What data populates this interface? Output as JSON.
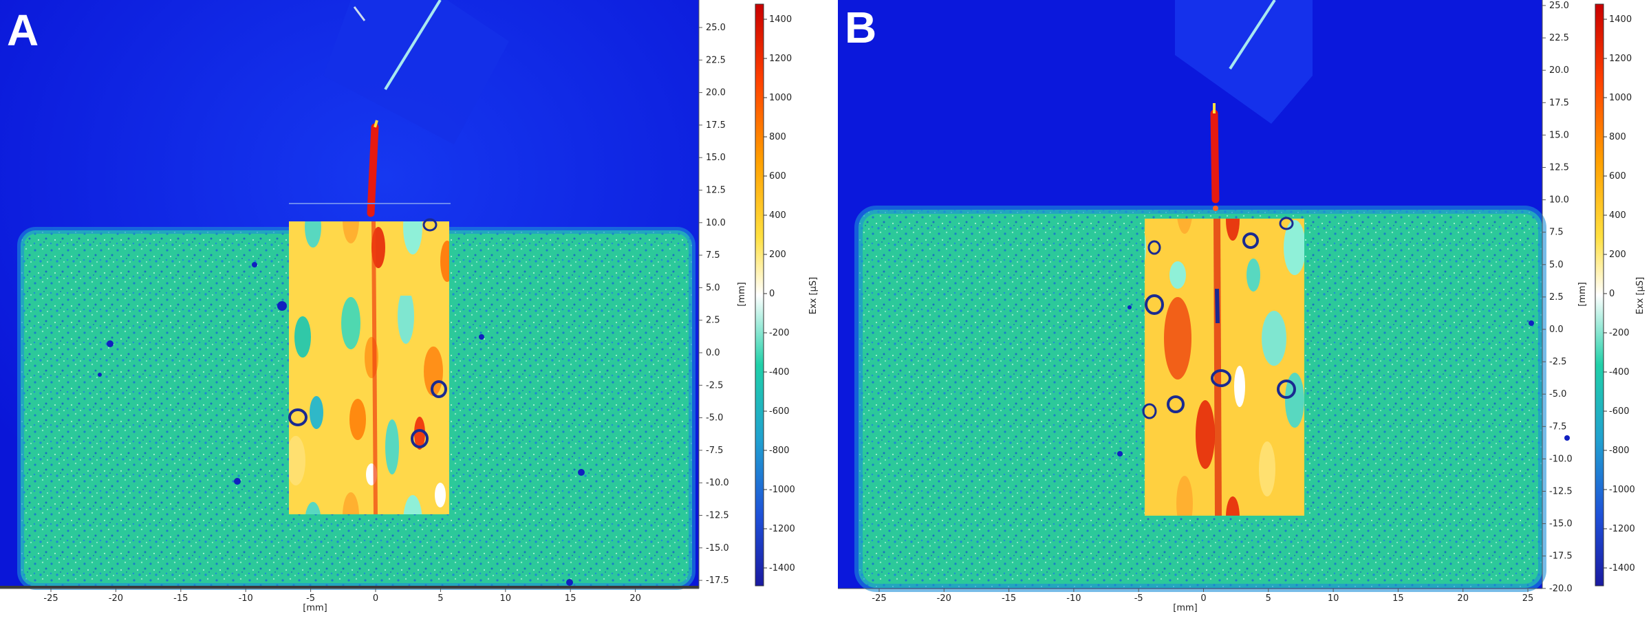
{
  "colors": {
    "background_blue": "#0a1ee6",
    "specimen_green": "#2fcf9c",
    "crack_red": "#e61a10",
    "colormap": [
      "#1a1aa0",
      "#1e50d8",
      "#20a0d0",
      "#20d0a8",
      "#ffffff",
      "#ffe040",
      "#ffa000",
      "#ff4000",
      "#c80000"
    ]
  },
  "colorbar": {
    "label": "Exx [µS]",
    "ticks": [
      "1400",
      "1200",
      "1000",
      "800",
      "600",
      "400",
      "200",
      "0",
      "-200",
      "-400",
      "-600",
      "-800",
      "-1000",
      "-1200",
      "-1400"
    ]
  },
  "panels": [
    {
      "letter": "A",
      "x_axis": {
        "label": "[mm]",
        "ticks": [
          "-25",
          "-20",
          "-15",
          "-10",
          "-5",
          "0",
          "5",
          "10",
          "15",
          "20"
        ]
      },
      "y_axis": {
        "label": "[mm]",
        "ticks": [
          "25.0",
          "22.5",
          "20.0",
          "17.5",
          "15.0",
          "12.5",
          "10.0",
          "7.5",
          "5.0",
          "2.5",
          "0.0",
          "-2.5",
          "-5.0",
          "-7.5",
          "-10.0",
          "-12.5",
          "-15.0",
          "-17.5"
        ]
      }
    },
    {
      "letter": "B",
      "x_axis": {
        "label": "[mm]",
        "ticks": [
          "-25",
          "-20",
          "-15",
          "-10",
          "-5",
          "0",
          "5",
          "10",
          "15",
          "20",
          "25"
        ]
      },
      "y_axis": {
        "label": "[mm]",
        "ticks": [
          "25.0",
          "22.5",
          "20.0",
          "17.5",
          "15.0",
          "12.5",
          "10.0",
          "7.5",
          "5.0",
          "2.5",
          "0.0",
          "-2.5",
          "-5.0",
          "-7.5",
          "-10.0",
          "-12.5",
          "-15.0",
          "-17.5",
          "-20.0"
        ]
      }
    }
  ]
}
